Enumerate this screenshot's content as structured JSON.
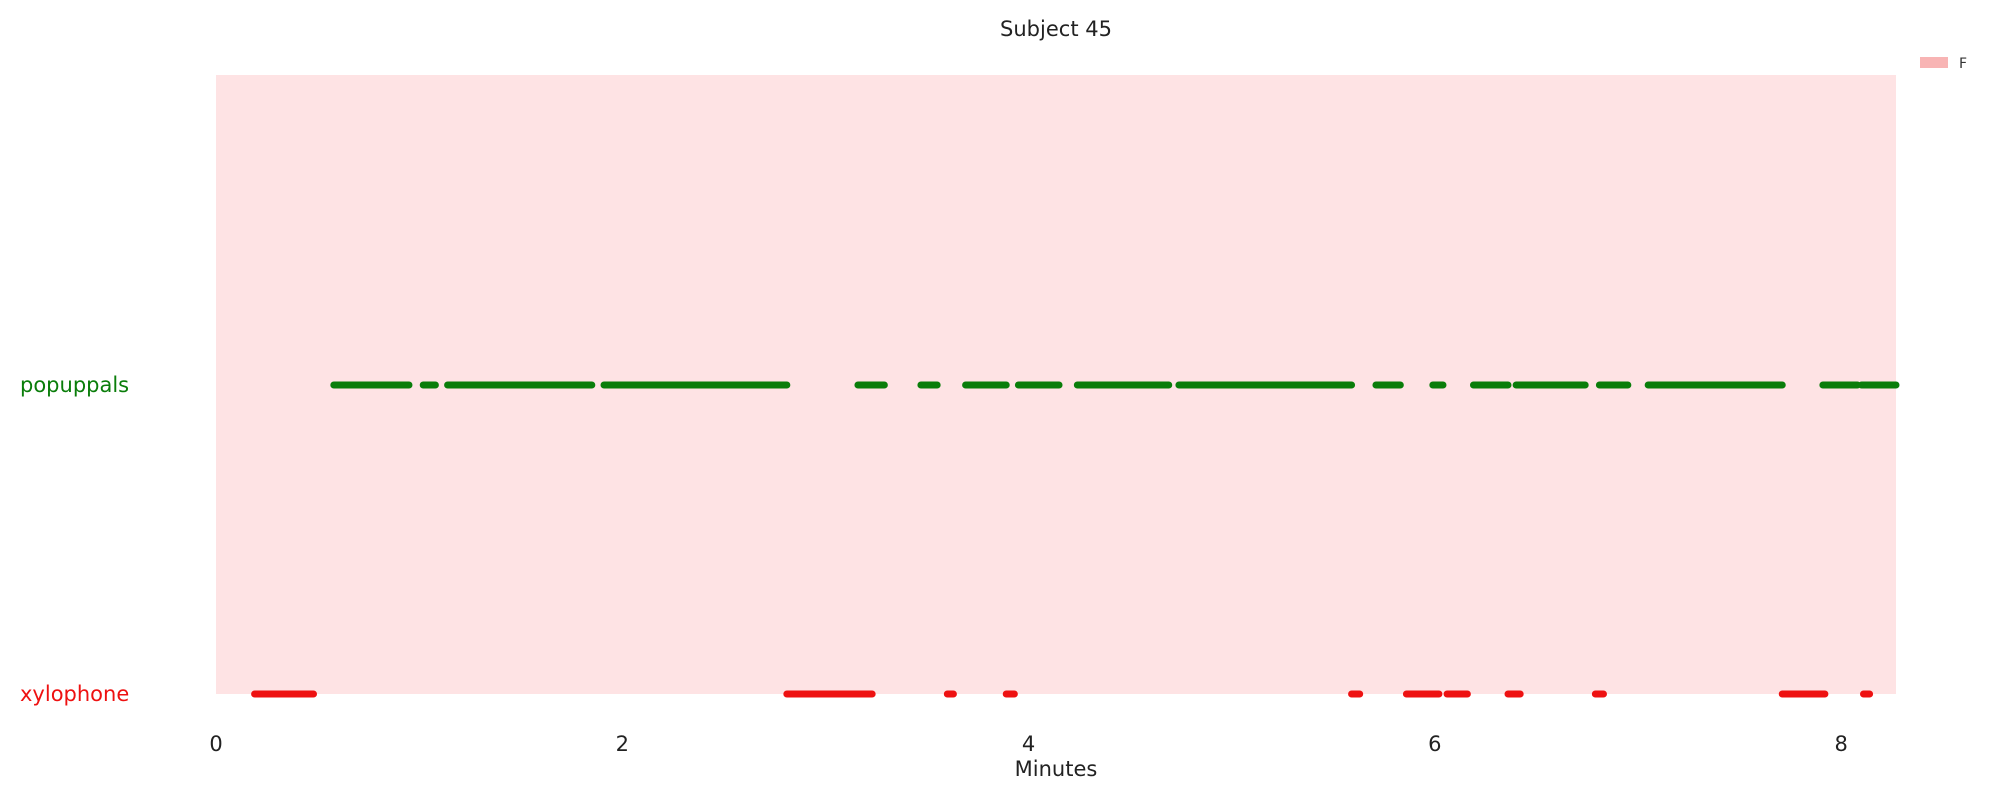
{
  "chart_data": {
    "type": "timeline",
    "title": "Subject 45",
    "xlabel": "Minutes",
    "xlim": [
      0,
      8.27
    ],
    "x_ticks": [
      0,
      2,
      4,
      6,
      8
    ],
    "background_color": "#fee3e4",
    "legend": {
      "position": "top-right",
      "label": "F",
      "color": "#f8b4b4"
    },
    "series": [
      {
        "name": "popuppals",
        "color": "#0a7d0a",
        "segments": [
          [
            0.58,
            0.95
          ],
          [
            1.02,
            1.08
          ],
          [
            1.14,
            1.85
          ],
          [
            1.91,
            2.81
          ],
          [
            3.16,
            3.29
          ],
          [
            3.47,
            3.55
          ],
          [
            3.69,
            3.89
          ],
          [
            3.95,
            4.15
          ],
          [
            4.24,
            4.69
          ],
          [
            4.74,
            5.59
          ],
          [
            5.71,
            5.83
          ],
          [
            5.99,
            6.04
          ],
          [
            6.19,
            6.36
          ],
          [
            6.4,
            6.74
          ],
          [
            6.81,
            6.95
          ],
          [
            7.05,
            7.71
          ],
          [
            7.91,
            8.08
          ],
          [
            8.1,
            8.27
          ]
        ]
      },
      {
        "name": "xylophone",
        "color": "#ee1111",
        "segments": [
          [
            0.19,
            0.48
          ],
          [
            2.81,
            3.23
          ],
          [
            3.6,
            3.63
          ],
          [
            3.89,
            3.93
          ],
          [
            5.59,
            5.63
          ],
          [
            5.86,
            6.02
          ],
          [
            6.06,
            6.16
          ],
          [
            6.36,
            6.42
          ],
          [
            6.79,
            6.83
          ],
          [
            7.71,
            7.92
          ],
          [
            8.11,
            8.14
          ]
        ]
      }
    ]
  }
}
